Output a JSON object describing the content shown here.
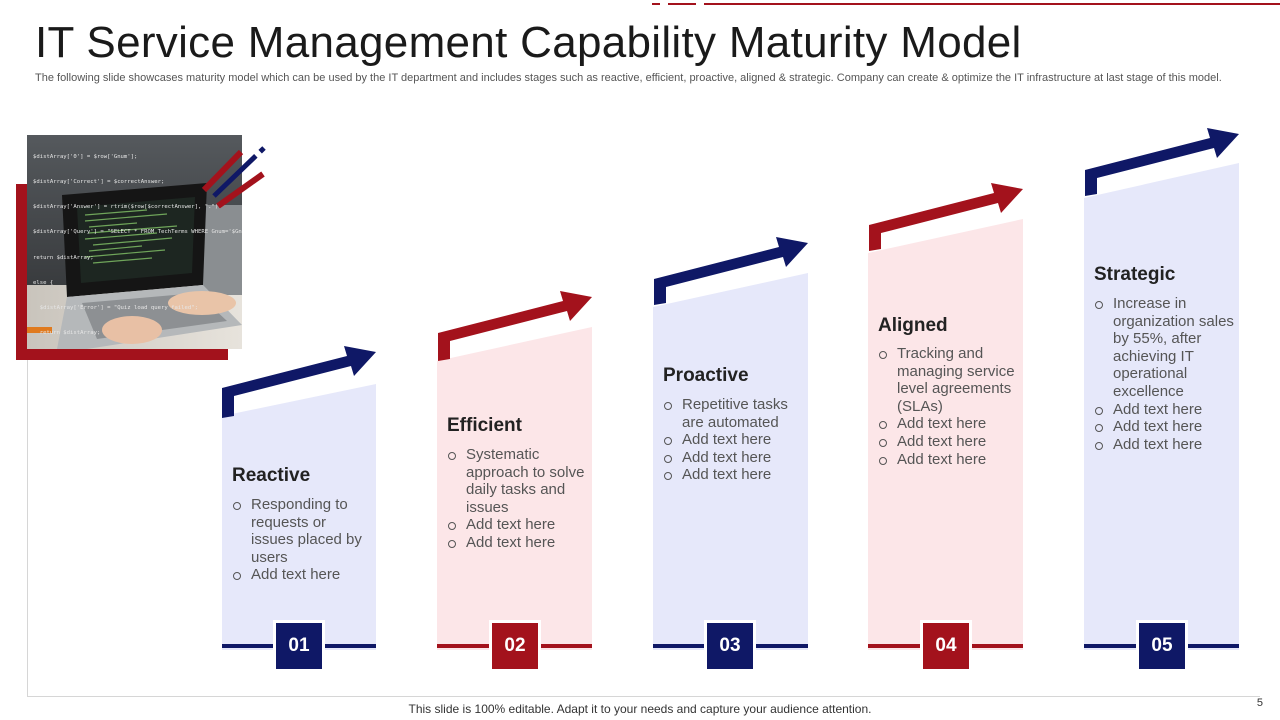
{
  "slide": {
    "title": "IT Service Management Capability Maturity Model",
    "subtitle": "The following slide showcases maturity model which can be used by the IT department and includes stages such as reactive, efficient, proactive, aligned & strategic. Company can create & optimize the IT infrastructure at last stage of this model.",
    "footer": "This slide is 100% editable. Adapt it to your  needs and capture your audience attention.",
    "page_number": "5"
  },
  "colors": {
    "navy": "#0f1866",
    "red": "#a3121c",
    "navy_fill": "#e6e8fa",
    "red_fill": "#fce6e8"
  },
  "photo": {
    "code_lines": [
      "$distArray['0'] = $row['Gnum'];",
      "$distArray['Correct'] = $correctAnswer;",
      "$distArray['Answer'] = rtrim($row[$correctAnswer], \".\");",
      "$distArray['Query'] = \"SELECT * FROM TechTerms WHERE Gnum='$Gnum'\";",
      "return $distArray;",
      "else {",
      "  $distArray['Error'] = \"Quiz load query failed\";",
      "  return $distArray;"
    ]
  },
  "stages": [
    {
      "number": "01",
      "title": "Reactive",
      "bullets": [
        "Responding to requests or issues placed by users",
        "Add text here"
      ]
    },
    {
      "number": "02",
      "title": "Efficient",
      "bullets": [
        "Systematic approach to solve daily tasks and issues",
        "Add text here",
        "Add text here"
      ]
    },
    {
      "number": "03",
      "title": "Proactive",
      "bullets": [
        "Repetitive tasks are automated",
        "Add text here",
        "Add text here",
        "Add text here"
      ]
    },
    {
      "number": "04",
      "title": "Aligned",
      "bullets": [
        "Tracking and managing service level agreements (SLAs)",
        "Add text here",
        "Add text here",
        "Add text here"
      ]
    },
    {
      "number": "05",
      "title": "Strategic",
      "bullets": [
        "Increase in organization sales by 55%, after achieving IT operational excellence",
        "Add text here",
        "Add text here",
        "Add text here"
      ]
    }
  ]
}
